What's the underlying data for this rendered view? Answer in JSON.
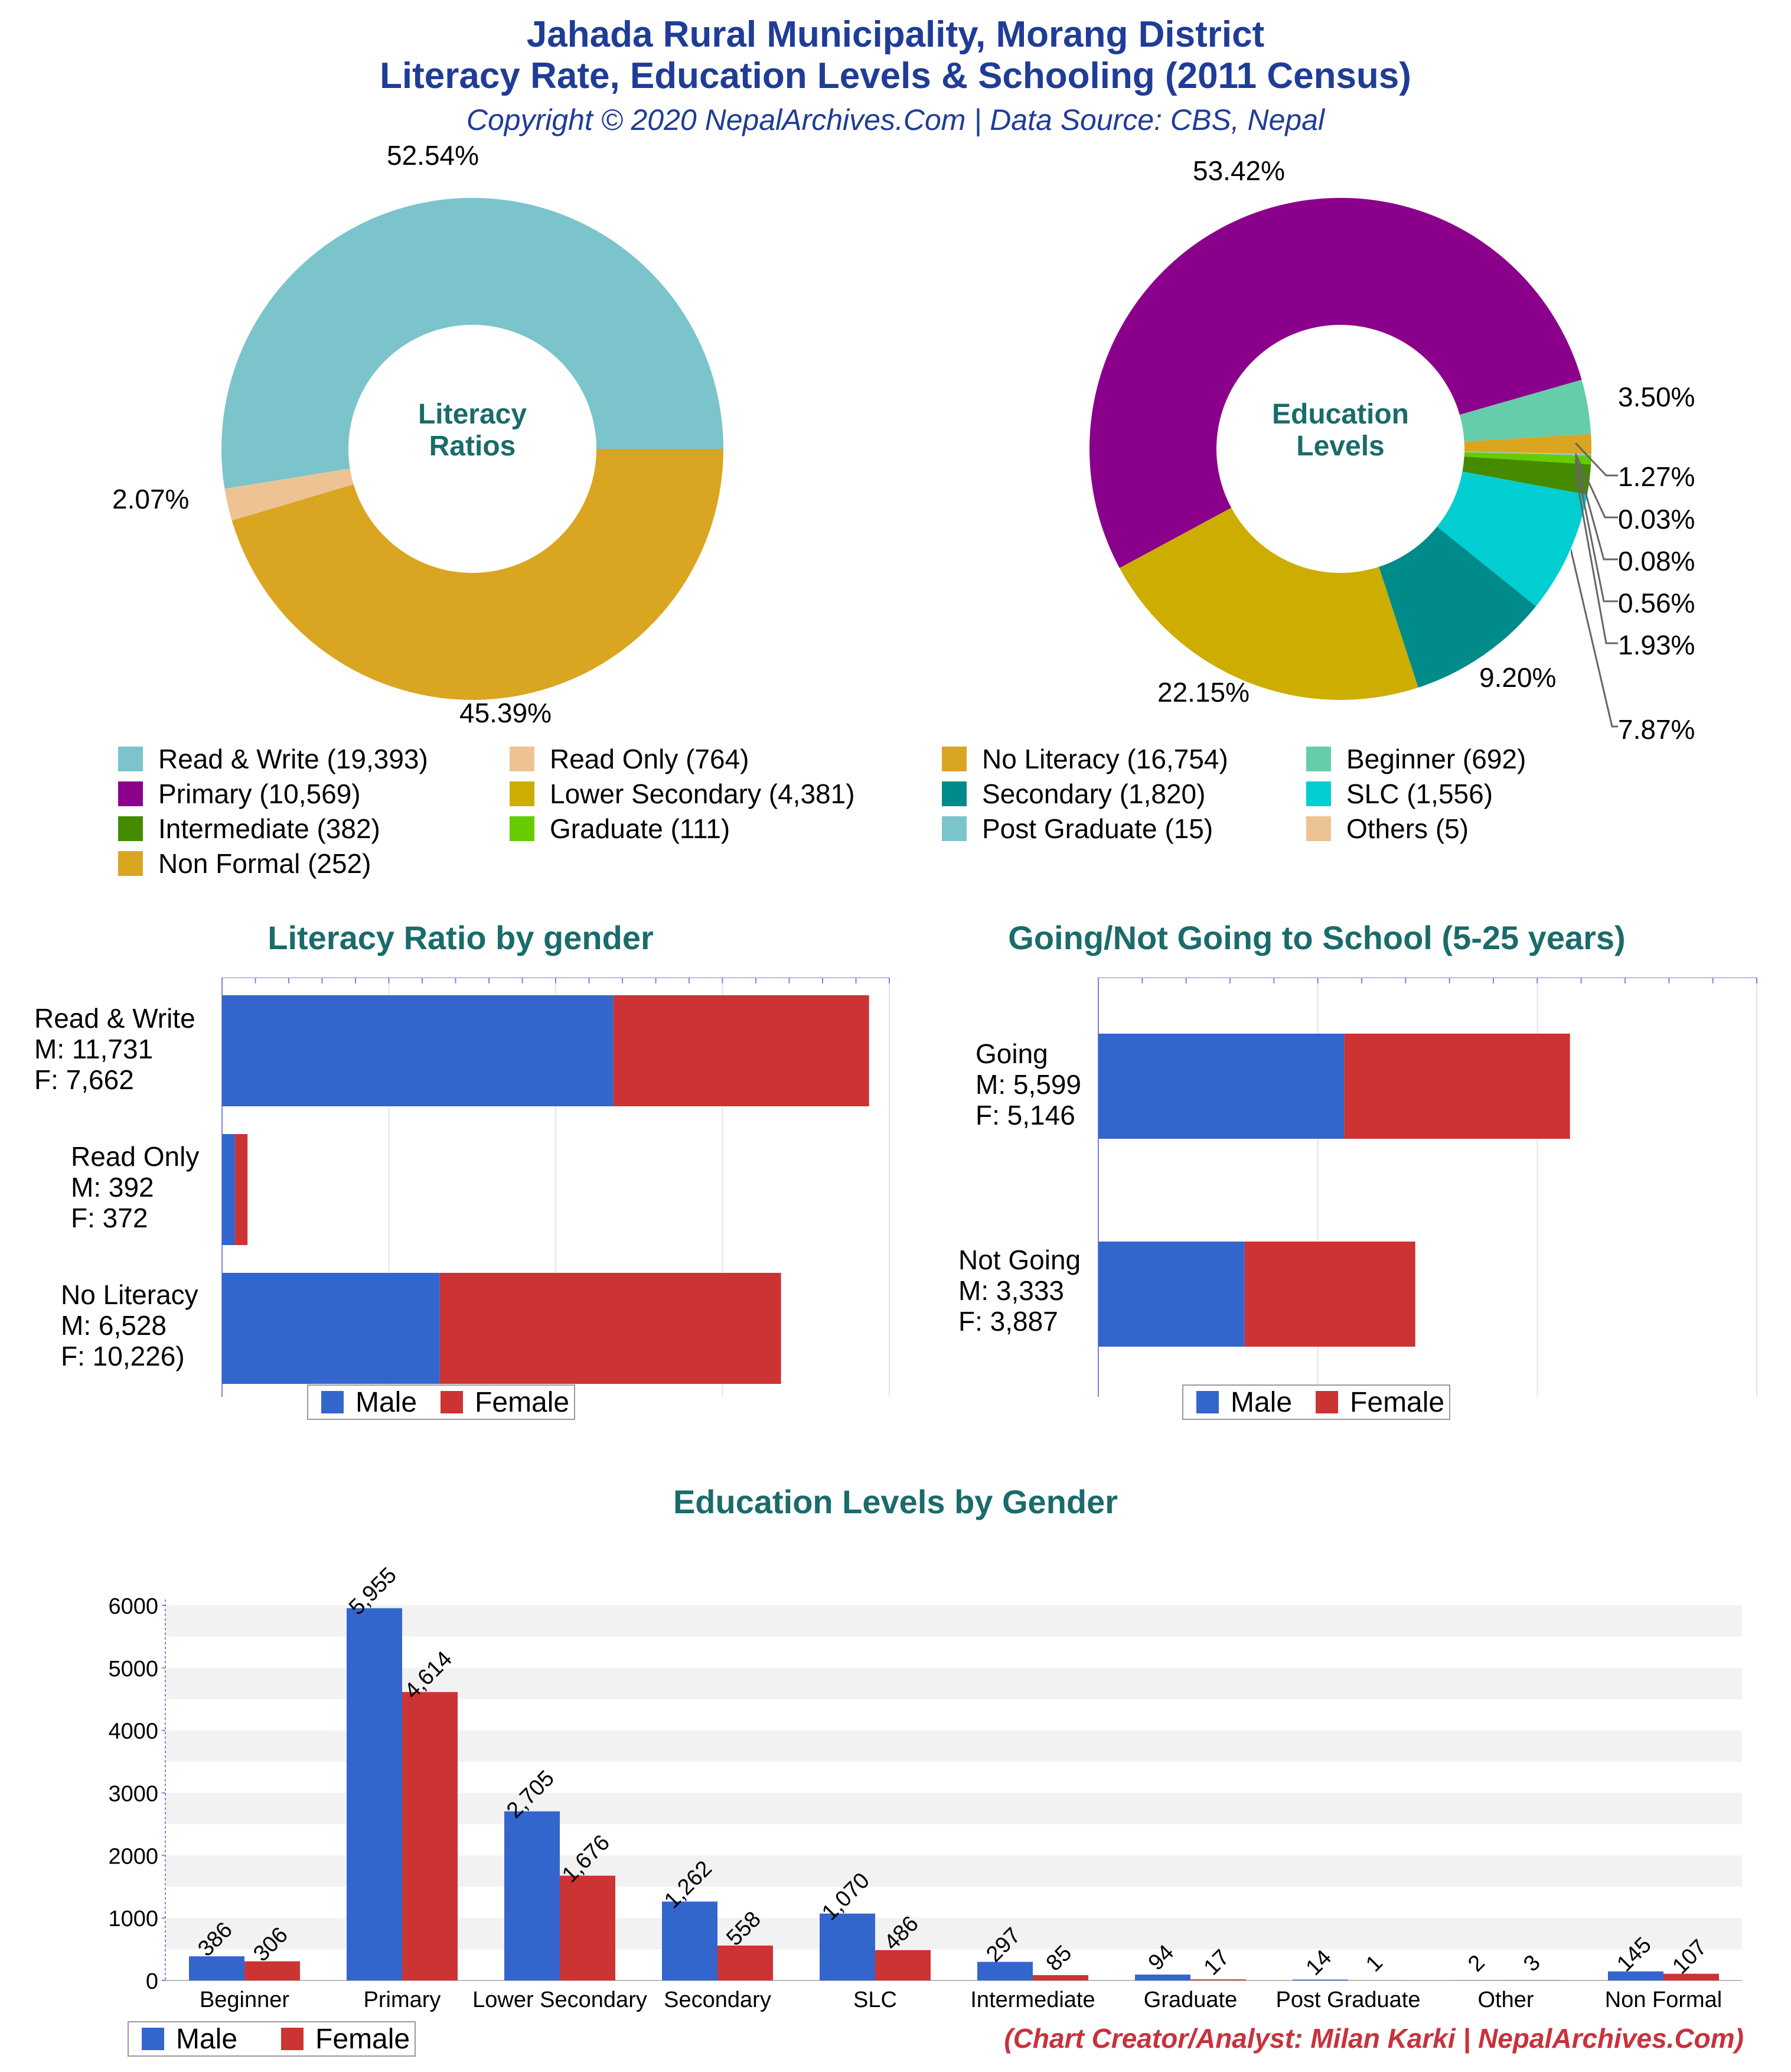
{
  "header": {
    "title_line1": "Jahada Rural Municipality, Morang District",
    "title_line2": "Literacy Rate, Education Levels & Schooling (2011 Census)",
    "subtitle": "Copyright © 2020 NepalArchives.Com | Data Source: CBS, Nepal"
  },
  "colors": {
    "male": "#3366cc",
    "female": "#cc3333",
    "title": "#1f3c96",
    "section": "#1a6b6b"
  },
  "chart_data": [
    {
      "id": "literacy-ratios",
      "type": "pie",
      "title": "Literacy Ratios",
      "slices": [
        {
          "label": "Read & Write",
          "value": 19393,
          "percent_label": "52.54%",
          "color": "#7cc4cc"
        },
        {
          "label": "Read Only",
          "value": 764,
          "percent_label": "2.07%",
          "color": "#eec393"
        },
        {
          "label": "No Literacy",
          "value": 16754,
          "percent_label": "45.39%",
          "color": "#daa520"
        }
      ]
    },
    {
      "id": "education-levels",
      "type": "pie",
      "title": "Education Levels",
      "slices": [
        {
          "label": "Beginner",
          "value": 692,
          "percent_label": "3.50%",
          "color": "#66cdaa"
        },
        {
          "label": "Non Formal",
          "value": 252,
          "percent_label": "1.27%",
          "color": "#daa520"
        },
        {
          "label": "Others",
          "value": 5,
          "percent_label": "0.03%",
          "color": "#eec393"
        },
        {
          "label": "Post Graduate",
          "value": 15,
          "percent_label": "0.08%",
          "color": "#7cc4cc"
        },
        {
          "label": "Graduate",
          "value": 111,
          "percent_label": "0.56%",
          "color": "#66cc00"
        },
        {
          "label": "Intermediate",
          "value": 382,
          "percent_label": "1.93%",
          "color": "#458b00"
        },
        {
          "label": "SLC",
          "value": 1556,
          "percent_label": "7.87%",
          "color": "#00ced1"
        },
        {
          "label": "Secondary",
          "value": 1820,
          "percent_label": "9.20%",
          "color": "#008b8b"
        },
        {
          "label": "Lower Secondary",
          "value": 4381,
          "percent_label": "22.15%",
          "color": "#ccad00"
        },
        {
          "label": "Primary",
          "value": 10569,
          "percent_label": "53.42%",
          "color": "#8b008b"
        }
      ]
    },
    {
      "id": "literacy-by-gender",
      "type": "bar",
      "orientation": "horizontal",
      "stacked": true,
      "title": "Literacy Ratio by gender",
      "categories": [
        "Read & Write",
        "Read Only",
        "No Literacy"
      ],
      "category_labels": [
        [
          "Read & Write",
          "M: 11,731",
          "F: 7,662"
        ],
        [
          "Read Only",
          "M: 392",
          "F: 372"
        ],
        [
          "No Literacy",
          "M: 6,528",
          "F: 10,226)"
        ]
      ],
      "series": [
        {
          "name": "Male",
          "values": [
            11731,
            392,
            6528
          ]
        },
        {
          "name": "Female",
          "values": [
            7662,
            372,
            10226
          ]
        }
      ],
      "xlim": [
        0,
        20000
      ]
    },
    {
      "id": "schooling-by-gender",
      "type": "bar",
      "orientation": "horizontal",
      "stacked": true,
      "title": "Going/Not Going to School (5-25 years)",
      "categories": [
        "Going",
        "Not Going"
      ],
      "category_labels": [
        [
          "Going",
          "M: 5,599",
          "F: 5,146"
        ],
        [
          "Not Going",
          "M: 3,333",
          "F: 3,887"
        ]
      ],
      "series": [
        {
          "name": "Male",
          "values": [
            5599,
            3333
          ]
        },
        {
          "name": "Female",
          "values": [
            5146,
            3887
          ]
        }
      ],
      "xlim": [
        0,
        15000
      ]
    },
    {
      "id": "education-by-gender",
      "type": "bar",
      "title": "Education Levels by Gender",
      "categories": [
        "Beginner",
        "Primary",
        "Lower Secondary",
        "Secondary",
        "SLC",
        "Intermediate",
        "Graduate",
        "Post Graduate",
        "Other",
        "Non Formal"
      ],
      "series": [
        {
          "name": "Male",
          "values": [
            386,
            5955,
            2705,
            1262,
            1070,
            297,
            94,
            14,
            2,
            145
          ],
          "labels": [
            "386",
            "5,955",
            "2,705",
            "1,262",
            "1,070",
            "297",
            "94",
            "14",
            "2",
            "145"
          ]
        },
        {
          "name": "Female",
          "values": [
            306,
            4614,
            1676,
            558,
            486,
            85,
            17,
            1,
            3,
            107
          ],
          "labels": [
            "306",
            "4,614",
            "1,676",
            "558",
            "486",
            "85",
            "17",
            "1",
            "3",
            "107"
          ]
        }
      ],
      "ylim": [
        0,
        6000
      ],
      "yticks": [
        "0",
        "1000",
        "2000",
        "3000",
        "4000",
        "5000",
        "6000"
      ]
    }
  ],
  "legend_main": [
    {
      "label": "Read & Write (19,393)",
      "color": "#7cc4cc"
    },
    {
      "label": "Read Only (764)",
      "color": "#eec393"
    },
    {
      "label": "No Literacy (16,754)",
      "color": "#daa520"
    },
    {
      "label": "Beginner (692)",
      "color": "#66cdaa"
    },
    {
      "label": "Primary (10,569)",
      "color": "#8b008b"
    },
    {
      "label": "Lower Secondary (4,381)",
      "color": "#ccad00"
    },
    {
      "label": "Secondary (1,820)",
      "color": "#008b8b"
    },
    {
      "label": "SLC (1,556)",
      "color": "#00ced1"
    },
    {
      "label": "Intermediate (382)",
      "color": "#458b00"
    },
    {
      "label": "Graduate (111)",
      "color": "#66cc00"
    },
    {
      "label": "Post Graduate (15)",
      "color": "#7cc4cc"
    },
    {
      "label": "Others (5)",
      "color": "#eec393"
    },
    {
      "label": "Non Formal (252)",
      "color": "#daa520"
    }
  ],
  "legend_gender": {
    "male": "Male",
    "female": "Female"
  },
  "pie_centers": {
    "literacy_line1": "Literacy",
    "literacy_line2": "Ratios",
    "education_line1": "Education",
    "education_line2": "Levels"
  },
  "credit": "(Chart Creator/Analyst: Milan Karki | NepalArchives.Com)"
}
